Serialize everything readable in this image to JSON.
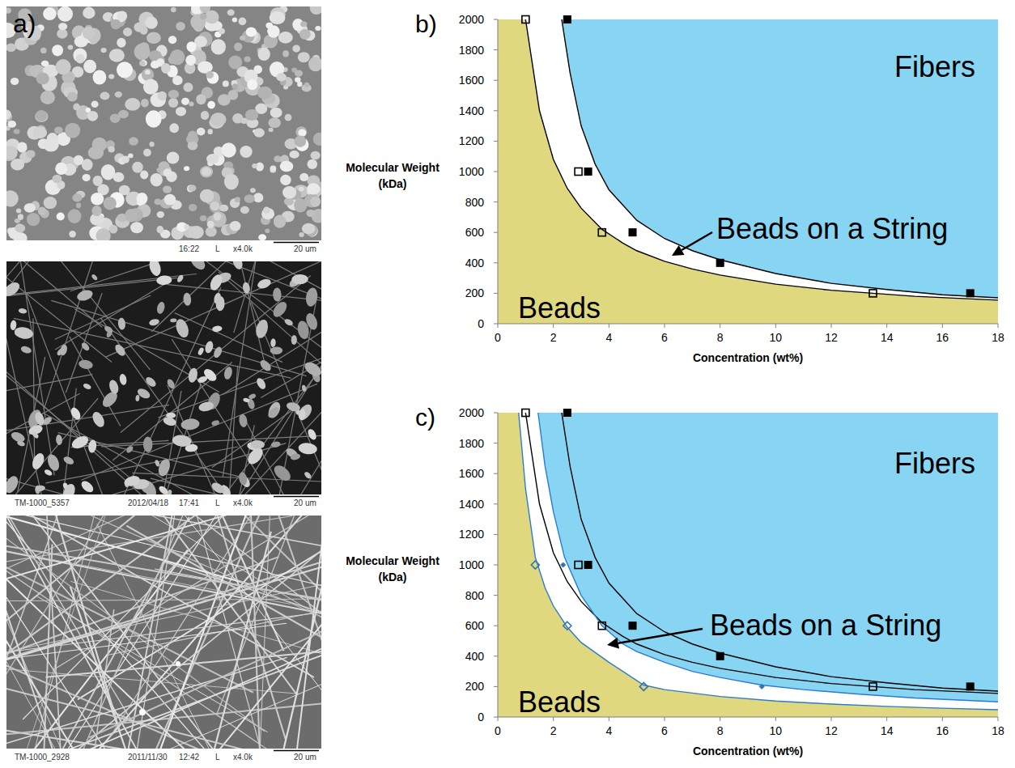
{
  "images": {
    "panel_label": "a)",
    "items": [
      {
        "caption": [
          "16:22",
          "L",
          "x4.0k",
          "20 um"
        ]
      },
      {
        "caption": [
          "TM-1000_5357",
          "2012/04/18",
          "17:41",
          "L",
          "x4.0k",
          "20 um"
        ]
      },
      {
        "caption": [
          "TM-1000_2928",
          "2011/11/30",
          "12:42",
          "L",
          "x4.0k",
          "20 um"
        ]
      }
    ]
  },
  "chart_data": [
    {
      "type": "scatter",
      "panel_label": "b)",
      "x_label": "Concentration (wt%)",
      "y_label": "Molecular Weight (kDa)",
      "xlim": [
        0,
        18
      ],
      "xticks": [
        0,
        2,
        4,
        6,
        8,
        10,
        12,
        14,
        16,
        18
      ],
      "ylim": [
        0,
        2000
      ],
      "yticks": [
        0,
        200,
        400,
        600,
        800,
        1000,
        1200,
        1400,
        1600,
        1800,
        2000
      ],
      "grid": false,
      "annotations": [
        {
          "text": "Fibers"
        },
        {
          "text": "Beads on a String"
        },
        {
          "text": "Beads"
        }
      ],
      "series": [
        {
          "type": "area",
          "color": "#ffffff",
          "x": [
            2.3,
            2.6,
            3,
            3.5,
            4,
            5,
            6,
            7,
            8,
            10,
            12,
            14,
            16,
            18
          ],
          "values": [
            2000,
            1650,
            1300,
            1050,
            880,
            680,
            560,
            480,
            420,
            330,
            265,
            225,
            190,
            170
          ]
        },
        {
          "type": "area",
          "color": "#dfd87f",
          "x": [
            1,
            1.5,
            2,
            2.5,
            3,
            3.75,
            4.5,
            5,
            6,
            7,
            8,
            10,
            12,
            13.5,
            15,
            18
          ],
          "values": [
            2000,
            1400,
            1080,
            890,
            760,
            620,
            530,
            480,
            410,
            360,
            320,
            260,
            220,
            200,
            180,
            155
          ]
        },
        {
          "type": "line",
          "color": "#000000",
          "line_style": "solid",
          "x": [
            2.3,
            2.6,
            3,
            3.5,
            4,
            5,
            6,
            7,
            8,
            10,
            12,
            14,
            16,
            18
          ],
          "values": [
            2000,
            1650,
            1300,
            1050,
            880,
            680,
            560,
            480,
            420,
            330,
            265,
            225,
            190,
            170
          ]
        },
        {
          "type": "line",
          "color": "#000000",
          "line_style": "solid",
          "x": [
            1,
            1.5,
            2,
            2.5,
            3,
            3.75,
            4.5,
            5,
            6,
            7,
            8,
            10,
            12,
            13.5,
            15,
            18
          ],
          "values": [
            2000,
            1400,
            1080,
            890,
            760,
            620,
            530,
            480,
            410,
            360,
            320,
            260,
            220,
            200,
            180,
            155
          ]
        },
        {
          "type": "scatter",
          "color": "#000000",
          "marker": "square-open",
          "x": [
            1,
            2.9,
            3.75,
            13.5
          ],
          "values": [
            2000,
            1000,
            600,
            200
          ]
        },
        {
          "type": "scatter",
          "color": "#000000",
          "marker": "square",
          "x": [
            2.5,
            3.25,
            4.85,
            8,
            17
          ],
          "values": [
            2000,
            1000,
            600,
            400,
            200
          ]
        }
      ]
    },
    {
      "type": "scatter",
      "panel_label": "c)",
      "x_label": "Concentration (wt%)",
      "y_label": "Molecular Weight (kDa)",
      "xlim": [
        0,
        18
      ],
      "xticks": [
        0,
        2,
        4,
        6,
        8,
        10,
        12,
        14,
        16,
        18
      ],
      "ylim": [
        0,
        2000
      ],
      "yticks": [
        0,
        200,
        400,
        600,
        800,
        1000,
        1200,
        1400,
        1600,
        1800,
        2000
      ],
      "grid": false,
      "annotations": [
        {
          "text": "Fibers"
        },
        {
          "text": "Beads on a String"
        },
        {
          "text": "Beads"
        }
      ],
      "series": [
        {
          "type": "area",
          "color": "#ffffff",
          "x": [
            1.45,
            1.7,
            2,
            2.4,
            3,
            3.75,
            4.5,
            5,
            6,
            7,
            8,
            9.5,
            11,
            13,
            15,
            18
          ],
          "values": [
            2000,
            1650,
            1350,
            1050,
            800,
            600,
            480,
            430,
            360,
            300,
            260,
            210,
            180,
            150,
            125,
            100
          ]
        },
        {
          "type": "area",
          "color": "#dfd87f",
          "x": [
            0.75,
            1,
            1.35,
            1.7,
            2,
            2.5,
            3,
            4,
            5.25,
            6,
            8,
            10,
            12,
            14,
            16,
            18
          ],
          "values": [
            2000,
            1500,
            1050,
            850,
            730,
            590,
            490,
            360,
            210,
            180,
            135,
            105,
            85,
            70,
            58,
            48
          ]
        },
        {
          "type": "line",
          "color": "#000000",
          "line_style": "solid",
          "x": [
            2.3,
            2.6,
            3,
            3.5,
            4,
            5,
            6,
            7,
            8,
            10,
            12,
            14,
            16,
            18
          ],
          "values": [
            2000,
            1650,
            1300,
            1050,
            880,
            680,
            560,
            480,
            420,
            330,
            265,
            225,
            190,
            170
          ]
        },
        {
          "type": "line",
          "color": "#000000",
          "line_style": "solid",
          "x": [
            1,
            1.5,
            2,
            2.5,
            3,
            3.75,
            4.5,
            5,
            6,
            7,
            8,
            10,
            12,
            13.5,
            15,
            18
          ],
          "values": [
            2000,
            1400,
            1080,
            890,
            760,
            620,
            530,
            480,
            410,
            360,
            320,
            260,
            220,
            200,
            180,
            155
          ]
        },
        {
          "type": "line",
          "color": "#2b7bd0",
          "line_style": "solid",
          "x": [
            1.45,
            1.7,
            2,
            2.4,
            3,
            3.75,
            4.5,
            5,
            6,
            7,
            8,
            9.5,
            11,
            13,
            15,
            18
          ],
          "values": [
            2000,
            1650,
            1350,
            1050,
            800,
            600,
            480,
            430,
            360,
            300,
            260,
            210,
            180,
            150,
            125,
            100
          ]
        },
        {
          "type": "line",
          "color": "#2b7bd0",
          "line_style": "solid",
          "x": [
            0.75,
            1,
            1.35,
            1.7,
            2,
            2.5,
            3,
            4,
            5.25,
            6,
            8,
            10,
            12,
            14,
            16,
            18
          ],
          "values": [
            2000,
            1500,
            1050,
            850,
            730,
            590,
            490,
            360,
            210,
            180,
            135,
            105,
            85,
            70,
            58,
            48
          ]
        },
        {
          "type": "scatter",
          "color": "#000000",
          "marker": "square-open",
          "x": [
            1,
            2.9,
            3.75,
            13.5
          ],
          "values": [
            2000,
            1000,
            600,
            200
          ]
        },
        {
          "type": "scatter",
          "color": "#000000",
          "marker": "square",
          "x": [
            2.5,
            3.25,
            4.85,
            8,
            17
          ],
          "values": [
            2000,
            1000,
            600,
            400,
            200
          ]
        },
        {
          "type": "scatter",
          "color": "#2e75b6",
          "marker": "diamond-open",
          "x": [
            1.35,
            2.5,
            5.25
          ],
          "values": [
            1000,
            600,
            200
          ]
        },
        {
          "type": "scatter",
          "color": "#2e75b6",
          "marker": "diamond",
          "x": [
            2.35,
            9.5
          ],
          "values": [
            1000,
            200
          ]
        }
      ]
    }
  ]
}
